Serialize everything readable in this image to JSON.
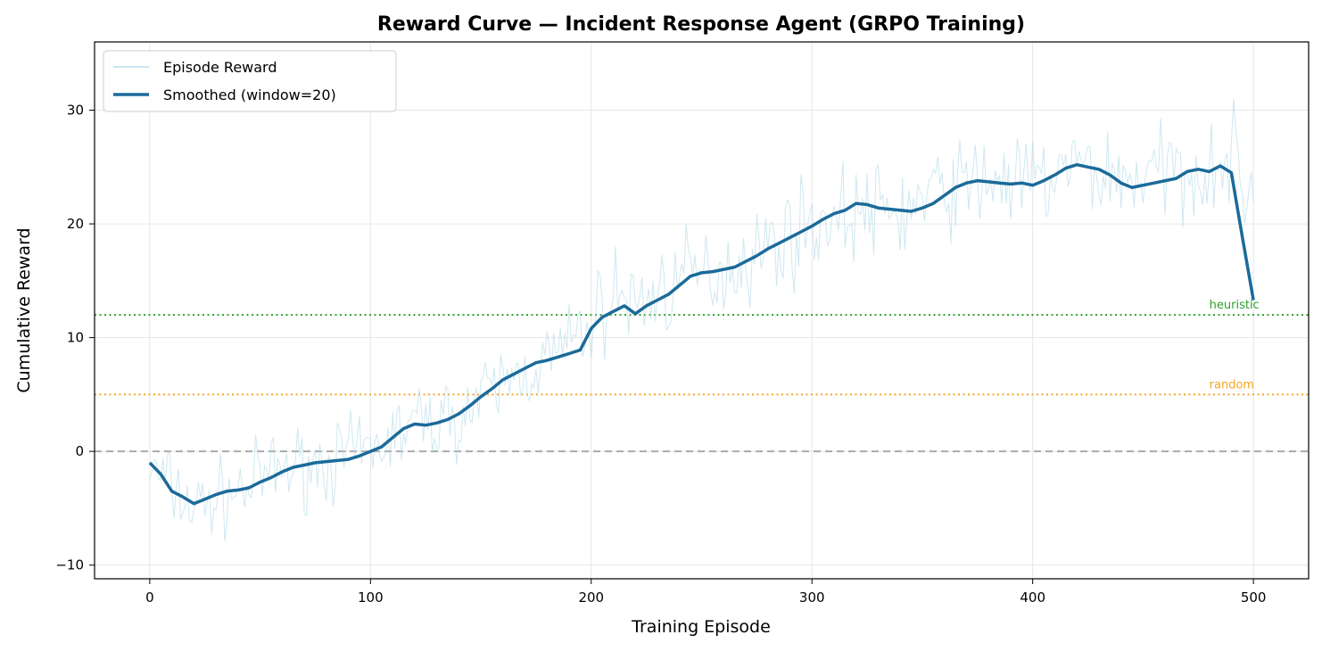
{
  "chart_data": {
    "type": "line",
    "title": "Reward Curve — Incident Response Agent (GRPO Training)",
    "xlabel": "Training Episode",
    "ylabel": "Cumulative Reward",
    "xlim": [
      -25,
      525
    ],
    "ylim": [
      -11.2,
      36
    ],
    "xticks": [
      0,
      100,
      200,
      300,
      400,
      500
    ],
    "yticks": [
      -10,
      0,
      10,
      20,
      30
    ],
    "xtick_labels": [
      "0",
      "100",
      "200",
      "300",
      "400",
      "500"
    ],
    "ytick_labels": [
      "−10",
      "0",
      "10",
      "20",
      "30"
    ],
    "grid": true,
    "legend_position": "top-left",
    "series": [
      {
        "name": "Episode Reward",
        "color": "#add8e6",
        "style": "thin-noisy",
        "note_values": "raw per-episode reward, noisy around smoothed curve (approx. ±4)",
        "x": [
          0,
          20,
          40,
          60,
          80,
          100,
          120,
          140,
          160,
          180,
          200,
          210,
          220,
          240,
          260,
          280,
          300,
          320,
          340,
          360,
          380,
          400,
          420,
          440,
          460,
          480,
          490,
          500
        ],
        "values": [
          -1.5,
          -5,
          -3.5,
          -1.5,
          -1,
          0,
          2.5,
          3,
          6,
          8,
          11,
          14,
          13,
          15,
          16,
          18,
          20,
          21,
          21,
          23,
          24,
          23.5,
          25,
          24,
          24.5,
          25,
          26,
          22
        ]
      },
      {
        "name": "Smoothed (window=20)",
        "color": "#1b6a9a",
        "style": "thick",
        "x": [
          0,
          5,
          10,
          15,
          20,
          25,
          30,
          35,
          40,
          45,
          50,
          55,
          60,
          65,
          70,
          75,
          80,
          85,
          90,
          95,
          100,
          105,
          110,
          115,
          120,
          125,
          130,
          135,
          140,
          145,
          150,
          155,
          160,
          165,
          170,
          175,
          180,
          185,
          190,
          195,
          200,
          205,
          210,
          215,
          220,
          225,
          230,
          235,
          240,
          245,
          250,
          255,
          260,
          265,
          270,
          275,
          280,
          285,
          290,
          295,
          300,
          305,
          310,
          315,
          320,
          325,
          330,
          335,
          340,
          345,
          350,
          355,
          360,
          365,
          370,
          375,
          380,
          385,
          390,
          395,
          400,
          405,
          410,
          415,
          420,
          425,
          430,
          435,
          440,
          445,
          450,
          455,
          460,
          465,
          470,
          475,
          480,
          485,
          490,
          495,
          500
        ],
        "values": [
          -1.0,
          -2.0,
          -3.5,
          -4.0,
          -4.6,
          -4.2,
          -3.8,
          -3.5,
          -3.4,
          -3.2,
          -2.7,
          -2.3,
          -1.8,
          -1.4,
          -1.2,
          -1.0,
          -0.9,
          -0.8,
          -0.7,
          -0.4,
          0.0,
          0.4,
          1.2,
          2.0,
          2.4,
          2.3,
          2.5,
          2.8,
          3.3,
          4.0,
          4.8,
          5.5,
          6.3,
          6.8,
          7.3,
          7.8,
          8.0,
          8.3,
          8.6,
          8.9,
          10.8,
          11.8,
          12.3,
          12.8,
          12.1,
          12.8,
          13.3,
          13.8,
          14.6,
          15.4,
          15.7,
          15.8,
          16.0,
          16.2,
          16.7,
          17.2,
          17.8,
          18.3,
          18.8,
          19.3,
          19.8,
          20.4,
          20.9,
          21.2,
          21.8,
          21.7,
          21.4,
          21.3,
          21.2,
          21.1,
          21.4,
          21.8,
          22.5,
          23.2,
          23.6,
          23.8,
          23.7,
          23.6,
          23.5,
          23.6,
          23.4,
          23.8,
          24.3,
          24.9,
          25.2,
          25.0,
          24.8,
          24.3,
          23.6,
          23.2,
          23.4,
          23.6,
          23.8,
          24.0,
          24.6,
          24.8,
          24.6,
          25.1,
          24.5,
          18.8,
          13.3
        ]
      }
    ],
    "reference_lines": [
      {
        "label": "heuristic",
        "y": 12,
        "color": "#2ca02c",
        "style": "dotted"
      },
      {
        "label": "random",
        "y": 5,
        "color": "#f5a623",
        "style": "dotted"
      },
      {
        "label": "",
        "y": 0,
        "color": "#aaaaaa",
        "style": "dashed"
      }
    ]
  }
}
